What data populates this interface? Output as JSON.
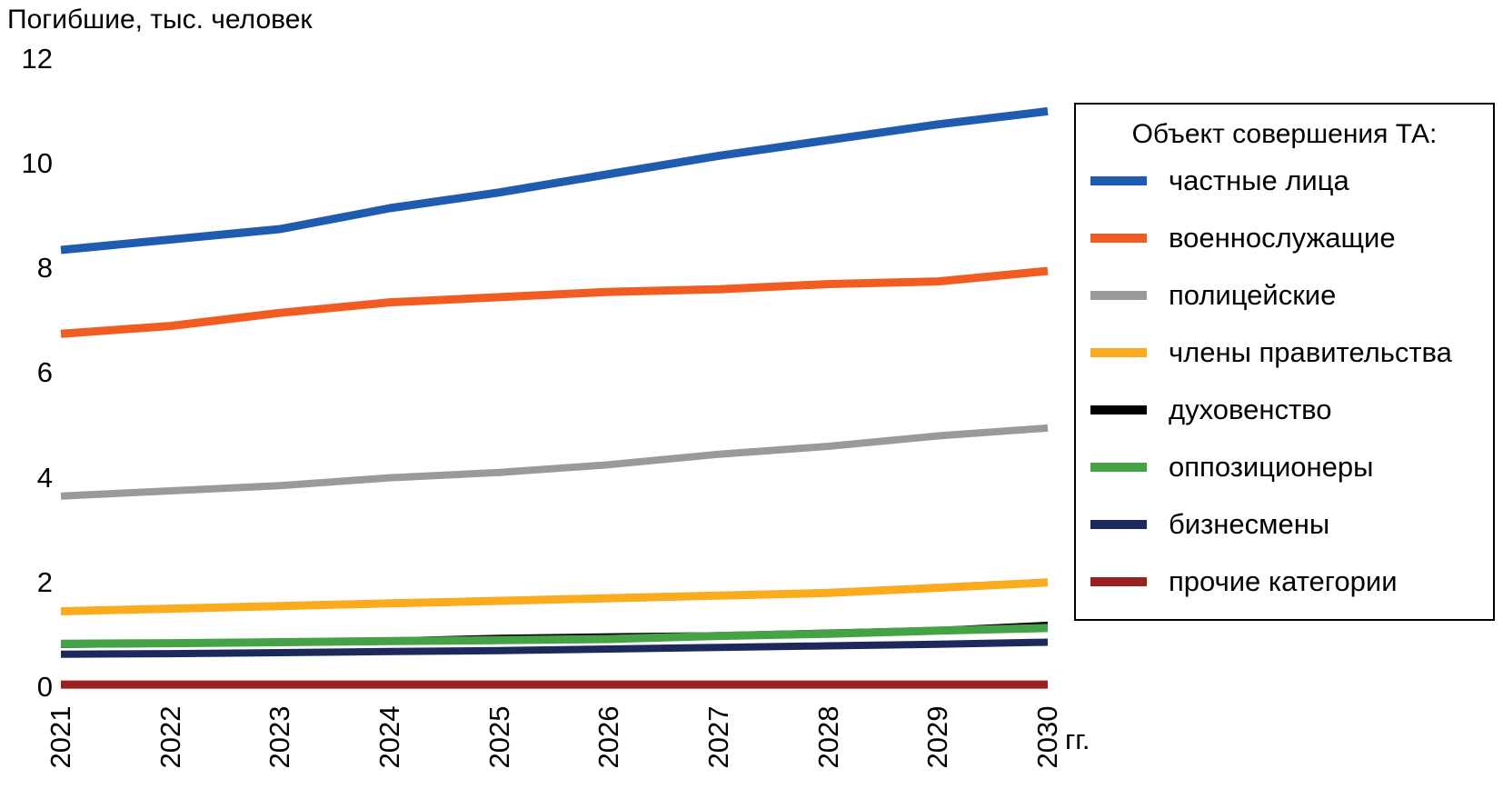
{
  "chart_data": {
    "type": "line",
    "title": "Погибшие, тыс. человек",
    "ylabel": "Погибшие, тыс. человек",
    "xlabel": "гг.",
    "x_suffix": "гг.",
    "x": [
      2021,
      2022,
      2023,
      2024,
      2025,
      2026,
      2027,
      2028,
      2029,
      2030
    ],
    "yticks": [
      0,
      2,
      4,
      6,
      8,
      10,
      12
    ],
    "ylim": [
      0,
      12
    ],
    "grid": false,
    "legend_position": "right",
    "legend_title": "Объект совершения ТА:",
    "series": [
      {
        "name": "частные лица",
        "color": "#1F5CB0",
        "width": 9,
        "values": [
          8.35,
          8.55,
          8.75,
          9.15,
          9.45,
          9.8,
          10.15,
          10.45,
          10.75,
          11.0
        ]
      },
      {
        "name": "военнослужащие",
        "color": "#F15C22",
        "width": 9,
        "values": [
          6.75,
          6.9,
          7.15,
          7.35,
          7.45,
          7.55,
          7.6,
          7.7,
          7.75,
          7.95
        ]
      },
      {
        "name": "полицейские",
        "color": "#9A9A9A",
        "width": 8,
        "values": [
          3.65,
          3.75,
          3.85,
          4.0,
          4.1,
          4.25,
          4.45,
          4.6,
          4.8,
          4.95
        ]
      },
      {
        "name": "члены правительства",
        "color": "#FAAB1E",
        "width": 9,
        "values": [
          1.45,
          1.5,
          1.55,
          1.6,
          1.65,
          1.7,
          1.75,
          1.8,
          1.9,
          2.0
        ]
      },
      {
        "name": "духовенство",
        "color": "#000000",
        "width": 6,
        "values": [
          0.8,
          0.82,
          0.85,
          0.9,
          0.95,
          0.98,
          1.0,
          1.05,
          1.1,
          1.2
        ]
      },
      {
        "name": "оппозиционеры",
        "color": "#45A247",
        "width": 9,
        "values": [
          0.83,
          0.84,
          0.86,
          0.88,
          0.9,
          0.92,
          0.98,
          1.02,
          1.08,
          1.13
        ]
      },
      {
        "name": "бизнесмены",
        "color": "#1B2A5A",
        "width": 8,
        "values": [
          0.63,
          0.64,
          0.66,
          0.68,
          0.7,
          0.73,
          0.76,
          0.79,
          0.82,
          0.86
        ]
      },
      {
        "name": "прочие категории",
        "color": "#9B2020",
        "width": 9,
        "values": [
          0.05,
          0.05,
          0.05,
          0.05,
          0.05,
          0.05,
          0.05,
          0.05,
          0.05,
          0.05
        ]
      }
    ]
  }
}
